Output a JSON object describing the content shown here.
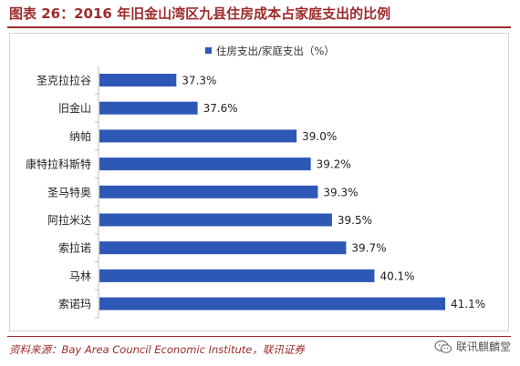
{
  "title": "图表 26：2016 年旧金山湾区九县住房成本占家庭支出的比例",
  "source": "资料来源：Bay Area Council Economic Institute，联讯证券",
  "watermark": "联讯麒麟堂",
  "colors": {
    "bar": "#2e58b5",
    "title": "#9e2b2b"
  },
  "chart_data": {
    "type": "bar",
    "orientation": "horizontal",
    "legend": {
      "label": "住房支出/家庭支出（%）",
      "position": "top-right"
    },
    "categories": [
      "圣克拉拉谷",
      "旧金山",
      "纳帕",
      "康特拉科斯特",
      "圣马特奥",
      "阿拉米达",
      "索拉诺",
      "马林",
      "索诺玛"
    ],
    "values": [
      37.3,
      37.6,
      39.0,
      39.2,
      39.3,
      39.5,
      39.7,
      40.1,
      41.1
    ],
    "value_labels": [
      "37.3%",
      "37.6%",
      "39.0%",
      "39.2%",
      "39.3%",
      "39.5%",
      "39.7%",
      "40.1%",
      "41.1%"
    ],
    "xlim": [
      36.2,
      41.1
    ],
    "grid": false
  }
}
